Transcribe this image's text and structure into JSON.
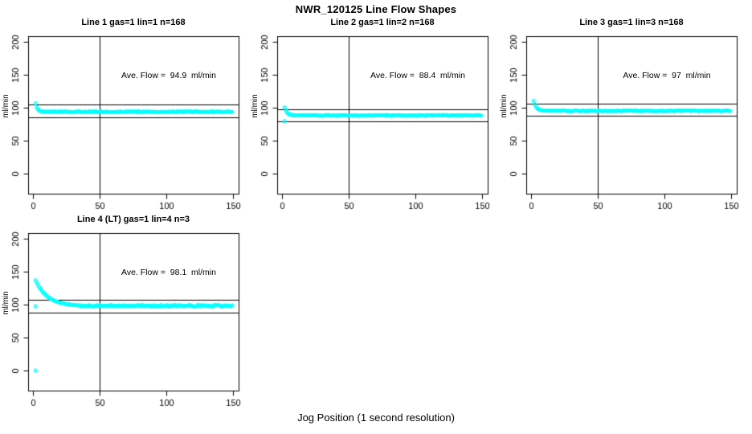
{
  "page": {
    "title": "NWR_120125  Line Flow Shapes",
    "xlabel": "Jog Position (1 second resolution)",
    "background": "#ffffff",
    "marker_color": "#00FFFF",
    "axis_color": "#000000"
  },
  "chart_data": [
    {
      "type": "scatter",
      "title": "Line 1 gas=1 lin=1 n=168",
      "annotation": "Ave. Flow =  94.9  ml/min",
      "ave_flow": 94.9,
      "n": 168,
      "ylabel": "ml/min",
      "x_ticks": [
        0,
        50,
        100,
        150
      ],
      "y_ticks": [
        0,
        50,
        100,
        150,
        200
      ],
      "xlim": [
        -4,
        154
      ],
      "ylim": [
        -30,
        209
      ],
      "grid": false,
      "marker": "open-circle",
      "marker_color": "#00FFFF",
      "ref_lines": {
        "vertical_x": 50,
        "horizontal_y": [
          104.4,
          85.4
        ]
      },
      "series": {
        "transient": [
          [
            2,
            106.8
          ],
          [
            2.9,
            100.6
          ],
          [
            3.8,
            97.5
          ],
          [
            4.7,
            95.8
          ],
          [
            5.6,
            94.9
          ],
          [
            6.5,
            94.4
          ],
          [
            7.4,
            94.1
          ],
          [
            8.3,
            93.9
          ],
          [
            9.2,
            93.9
          ],
          [
            10.1,
            93.8
          ],
          [
            11,
            93.8
          ],
          [
            11.9,
            93.8
          ]
        ],
        "steady": {
          "x_from": 12.8,
          "x_to": 150,
          "step": 0.886,
          "mean": 93.8,
          "noise": 0.7
        },
        "outliers": []
      }
    },
    {
      "type": "scatter",
      "title": "Line 2 gas=1 lin=2 n=168",
      "annotation": "Ave. Flow =  88.4  ml/min",
      "ave_flow": 88.4,
      "n": 168,
      "ylabel": "ml/min",
      "x_ticks": [
        0,
        50,
        100,
        150
      ],
      "y_ticks": [
        0,
        50,
        100,
        150,
        200
      ],
      "xlim": [
        -4,
        154
      ],
      "ylim": [
        -30,
        209
      ],
      "grid": false,
      "marker": "open-circle",
      "marker_color": "#00FFFF",
      "ref_lines": {
        "vertical_x": 50,
        "horizontal_y": [
          97.2,
          79.6
        ]
      },
      "series": {
        "transient": [
          [
            2,
            100.3
          ],
          [
            2.9,
            95.9
          ],
          [
            3.8,
            93.1
          ],
          [
            4.7,
            91.2
          ],
          [
            5.6,
            90.0
          ],
          [
            6.5,
            89.3
          ],
          [
            7.4,
            88.9
          ],
          [
            8.3,
            88.7
          ],
          [
            9.2,
            88.5
          ],
          [
            10.1,
            88.4
          ],
          [
            11,
            88.4
          ],
          [
            11.9,
            88.3
          ]
        ],
        "steady": {
          "x_from": 12.8,
          "x_to": 150,
          "step": 0.886,
          "mean": 88.3,
          "noise": 0.6
        },
        "outliers": [
          [
            2,
            79.6
          ]
        ]
      }
    },
    {
      "type": "scatter",
      "title": "Line 3 gas=1 lin=3 n=168",
      "annotation": "Ave. Flow =  97  ml/min",
      "ave_flow": 97,
      "n": 168,
      "ylabel": "ml/min",
      "x_ticks": [
        0,
        50,
        100,
        150
      ],
      "y_ticks": [
        0,
        50,
        100,
        150,
        200
      ],
      "xlim": [
        -4,
        154
      ],
      "ylim": [
        -30,
        209
      ],
      "grid": false,
      "marker": "open-circle",
      "marker_color": "#00FFFF",
      "ref_lines": {
        "vertical_x": 50,
        "horizontal_y": [
          106.7,
          87.3
        ]
      },
      "series": {
        "transient": [
          [
            2,
            110.3
          ],
          [
            2.9,
            104.7
          ],
          [
            3.8,
            101.2
          ],
          [
            4.7,
            99.0
          ],
          [
            5.6,
            97.6
          ],
          [
            6.5,
            96.8
          ],
          [
            7.4,
            96.2
          ],
          [
            8.3,
            95.9
          ],
          [
            9.2,
            95.7
          ],
          [
            10.1,
            95.5
          ],
          [
            11,
            95.4
          ],
          [
            11.9,
            95.4
          ]
        ],
        "steady": {
          "x_from": 12.8,
          "x_to": 150,
          "step": 0.886,
          "mean": 95.3,
          "noise": 0.6
        },
        "outliers": []
      }
    },
    {
      "type": "scatter",
      "title": "Line 4 (LT) gas=1 lin=4 n=3",
      "annotation": "Ave. Flow =  98.1  ml/min",
      "ave_flow": 98.1,
      "n": 3,
      "ylabel": "ml/min",
      "x_ticks": [
        0,
        50,
        100,
        150
      ],
      "y_ticks": [
        0,
        50,
        100,
        150,
        200
      ],
      "xlim": [
        -4,
        154
      ],
      "ylim": [
        -30,
        209
      ],
      "grid": false,
      "marker": "open-circle",
      "marker_color": "#00FFFF",
      "ref_lines": {
        "vertical_x": 50,
        "horizontal_y": [
          107.9,
          88.3
        ]
      },
      "series": {
        "transient": [
          [
            2,
            137.0
          ],
          [
            2.9,
            133.3
          ],
          [
            3.8,
            129.9
          ],
          [
            4.7,
            126.8
          ],
          [
            5.6,
            124.1
          ],
          [
            6.5,
            121.6
          ],
          [
            7.4,
            119.3
          ],
          [
            8.3,
            117.3
          ],
          [
            9.2,
            115.4
          ],
          [
            10.1,
            113.8
          ],
          [
            11,
            112.2
          ],
          [
            11.9,
            110.9
          ],
          [
            12.8,
            109.6
          ],
          [
            13.7,
            108.5
          ],
          [
            14.6,
            107.5
          ],
          [
            15.5,
            106.5
          ],
          [
            16.4,
            105.7
          ],
          [
            17.3,
            105.0
          ],
          [
            18.2,
            104.3
          ],
          [
            19.1,
            103.7
          ],
          [
            20,
            103.1
          ],
          [
            20.9,
            102.6
          ],
          [
            21.8,
            102.2
          ],
          [
            22.7,
            101.7
          ],
          [
            23.6,
            101.4
          ],
          [
            24.5,
            101.0
          ],
          [
            25.4,
            100.7
          ],
          [
            26.3,
            100.4
          ],
          [
            27.2,
            100.2
          ],
          [
            28.1,
            100.0
          ],
          [
            29,
            99.8
          ],
          [
            30,
            99.5
          ],
          [
            31,
            99.4
          ],
          [
            32,
            99.2
          ],
          [
            33,
            99.1
          ],
          [
            34,
            98.9
          ]
        ],
        "steady": {
          "x_from": 35,
          "x_to": 150,
          "step": 0.886,
          "mean": 98.2,
          "noise": 1.2
        },
        "outliers": [
          [
            2,
            0
          ],
          [
            2,
            97.5
          ]
        ]
      }
    }
  ]
}
